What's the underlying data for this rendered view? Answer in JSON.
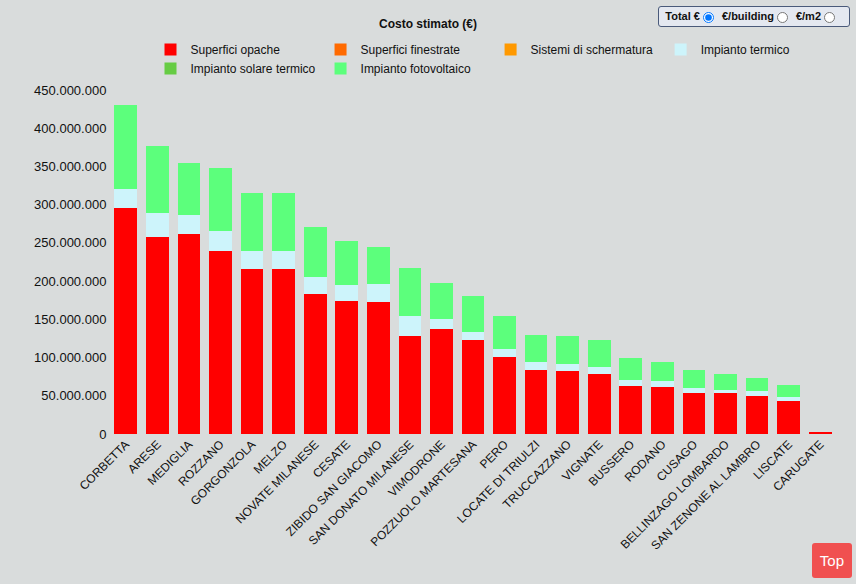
{
  "chart_data": {
    "type": "bar",
    "title": "Costo stimato (€)",
    "categories": [
      "CORBETTA",
      "ARESE",
      "MEDIGLIA",
      "ROZZANO",
      "GORGONZOLA",
      "MELZO",
      "NOVATE MILANESE",
      "CESATE",
      "ZIBIDO SAN GIACOMO",
      "SAN DONATO MILANESE",
      "VIMODRONE",
      "POZZUOLO MARTESANA",
      "PERO",
      "LOCATE DI TRIULZI",
      "TRUCCAZZANO",
      "VIGNATE",
      "BUSSERO",
      "RODANO",
      "CUSAGO",
      "BELLINZAGO LOMBARDO",
      "SAN ZENONE AL LAMBRO",
      "LISCATE",
      "CARUGATE"
    ],
    "series": [
      {
        "name": "Superfici opache",
        "color": "#ff0000",
        "values": [
          295000000,
          258000000,
          262000000,
          239000000,
          216000000,
          216000000,
          183000000,
          174000000,
          173000000,
          128000000,
          138000000,
          123000000,
          101000000,
          84000000,
          82000000,
          78000000,
          63000000,
          62000000,
          54000000,
          53000000,
          50000000,
          43000000,
          3000000
        ]
      },
      {
        "name": "Superfici finestrate",
        "color": "#ff6a00",
        "values": [
          0,
          0,
          0,
          0,
          0,
          0,
          0,
          0,
          0,
          0,
          0,
          0,
          0,
          0,
          0,
          0,
          0,
          0,
          0,
          0,
          0,
          0,
          0
        ]
      },
      {
        "name": "Sistemi di schermatura",
        "color": "#ff9900",
        "values": [
          0,
          0,
          0,
          0,
          0,
          0,
          0,
          0,
          0,
          0,
          0,
          0,
          0,
          0,
          0,
          0,
          0,
          0,
          0,
          0,
          0,
          0,
          0
        ]
      },
      {
        "name": "Impianto termico",
        "color": "#cdf4fb",
        "values": [
          26000000,
          31000000,
          25000000,
          26000000,
          23000000,
          23000000,
          22000000,
          21000000,
          23000000,
          26000000,
          13000000,
          10000000,
          10000000,
          10000000,
          10000000,
          10000000,
          7000000,
          7000000,
          6000000,
          4000000,
          6000000,
          5000000,
          0
        ]
      },
      {
        "name": "Impianto solare termico",
        "color": "#66cc44",
        "values": [
          0,
          0,
          0,
          0,
          0,
          0,
          0,
          0,
          0,
          0,
          0,
          0,
          0,
          0,
          0,
          0,
          0,
          0,
          0,
          0,
          0,
          0,
          0
        ]
      },
      {
        "name": "Impianto fotovoltaico",
        "color": "#5cff7c",
        "values": [
          109000000,
          88000000,
          68000000,
          83000000,
          76000000,
          76000000,
          66000000,
          57000000,
          49000000,
          63000000,
          47000000,
          47000000,
          43000000,
          36000000,
          36000000,
          35000000,
          30000000,
          25000000,
          24000000,
          21000000,
          17000000,
          16000000,
          0
        ]
      }
    ],
    "ylim": [
      0,
      450000000
    ],
    "yticks": [
      0,
      {
        "value": 50000000,
        "label": "50.000.000"
      },
      {
        "value": 100000000,
        "label": "100.000.000"
      },
      {
        "value": 150000000,
        "label": "150.000.000"
      },
      {
        "value": 200000000,
        "label": "200.000.000"
      },
      {
        "value": 250000000,
        "label": "250.000.000"
      },
      {
        "value": 300000000,
        "label": "300.000.000"
      },
      {
        "value": 350000000,
        "label": "350.000.000"
      },
      {
        "value": 400000000,
        "label": "400.000.000"
      },
      {
        "value": 450000000,
        "label": "450.000.000"
      }
    ],
    "stacked": true,
    "grid": false,
    "legend": "top"
  },
  "controls": {
    "options": [
      "Total €",
      "€/building",
      "€/m2"
    ],
    "selected": "Total €",
    "button": "Top"
  }
}
